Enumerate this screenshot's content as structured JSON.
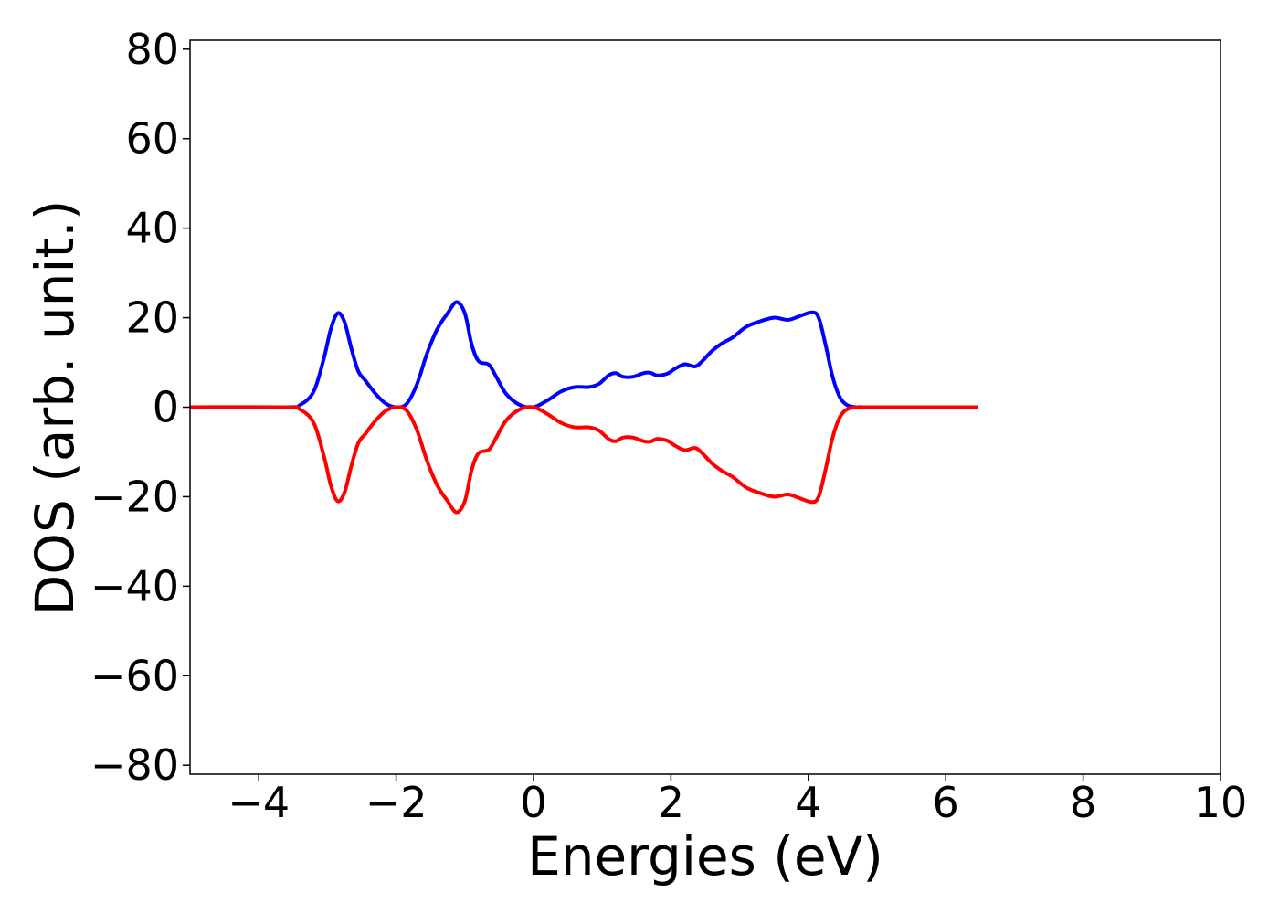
{
  "chart_data": {
    "type": "line",
    "xlabel": "Energies (eV)",
    "ylabel": "DOS (arb. unit.)",
    "xlim": [
      -5,
      10
    ],
    "ylim": [
      -82,
      82
    ],
    "x_ticks": [
      -4,
      -2,
      0,
      2,
      4,
      6,
      8,
      10
    ],
    "x_tick_labels": [
      "−4",
      "−2",
      "0",
      "2",
      "4",
      "6",
      "8",
      "10"
    ],
    "y_ticks": [
      80,
      60,
      40,
      20,
      0,
      -20,
      -40,
      -60,
      -80
    ],
    "y_tick_labels": [
      "80",
      "60",
      "40",
      "20",
      "0",
      "−20",
      "−40",
      "−60",
      "−80"
    ],
    "grid": false,
    "x": [
      -5.0,
      -3.6,
      -3.4,
      -3.2,
      -3.05,
      -2.95,
      -2.85,
      -2.75,
      -2.65,
      -2.55,
      -2.45,
      -2.3,
      -2.15,
      -2.0,
      -1.85,
      -1.7,
      -1.55,
      -1.4,
      -1.25,
      -1.12,
      -1.0,
      -0.9,
      -0.8,
      -0.65,
      -0.55,
      -0.4,
      -0.2,
      0.0,
      0.2,
      0.4,
      0.6,
      0.8,
      0.95,
      1.1,
      1.2,
      1.3,
      1.45,
      1.6,
      1.7,
      1.8,
      1.95,
      2.05,
      2.2,
      2.35,
      2.45,
      2.6,
      2.75,
      2.9,
      3.1,
      3.3,
      3.5,
      3.7,
      3.85,
      4.05,
      4.15,
      4.25,
      4.35,
      4.45,
      4.55,
      4.7,
      5.0,
      6.45
    ],
    "series": [
      {
        "color": "#0000ff",
        "values": [
          0,
          0,
          0.5,
          3.5,
          11,
          17.5,
          21,
          19,
          13,
          8,
          6,
          3,
          0.8,
          0,
          0.7,
          5,
          12,
          17.5,
          21,
          23.5,
          21,
          14,
          10.3,
          9.5,
          7,
          3,
          0.5,
          0,
          1.5,
          3.5,
          4.5,
          4.5,
          5.2,
          7.2,
          7.6,
          6.8,
          6.8,
          7.6,
          7.7,
          7.1,
          7.5,
          8.5,
          9.6,
          9.1,
          10.2,
          12.6,
          14.3,
          15.6,
          18,
          19.2,
          20,
          19.5,
          20.2,
          21.2,
          20,
          14,
          7,
          2.5,
          0.6,
          0,
          0,
          0
        ]
      },
      {
        "color": "#ff0000",
        "values": [
          0,
          0,
          -0.5,
          -3.5,
          -11,
          -17.5,
          -21,
          -19,
          -13,
          -8,
          -6,
          -3,
          -0.8,
          0,
          -0.7,
          -5,
          -12,
          -17.5,
          -21,
          -23.5,
          -21,
          -14,
          -10.3,
          -9.5,
          -7,
          -3,
          -0.5,
          0,
          -1.5,
          -3.5,
          -4.5,
          -4.5,
          -5.2,
          -7.2,
          -7.6,
          -6.8,
          -6.8,
          -7.6,
          -7.7,
          -7.1,
          -7.5,
          -8.5,
          -9.6,
          -9.1,
          -10.2,
          -12.6,
          -14.3,
          -15.6,
          -18,
          -19.2,
          -20,
          -19.5,
          -20.2,
          -21.2,
          -20,
          -14,
          -7,
          -2.5,
          -0.6,
          0,
          0,
          0
        ]
      }
    ]
  }
}
